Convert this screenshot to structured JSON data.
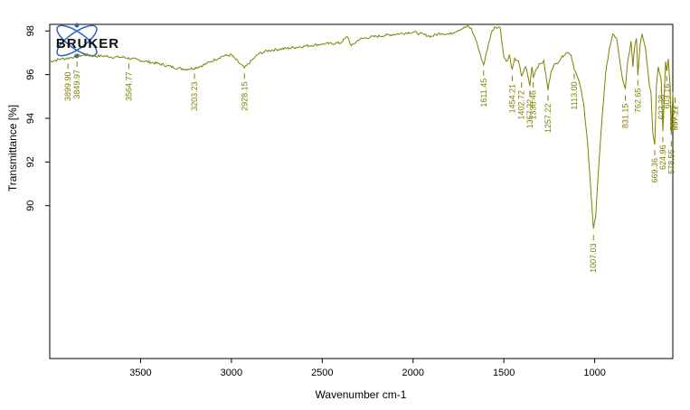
{
  "chart_data": {
    "type": "line",
    "title": "",
    "xlabel": "Wavenumber cm-1",
    "ylabel": "Transmittance [%]",
    "xlim": [
      4000,
      570
    ],
    "ylim": [
      83,
      98.3
    ],
    "x_reversed": true,
    "x_ticks": [
      3500,
      3000,
      2500,
      2000,
      1500,
      1000
    ],
    "y_ticks": [
      90,
      92,
      94,
      96,
      98
    ],
    "grid": false,
    "line_color": "#808000",
    "logo_text": "BRUKER",
    "logo_color": "#2a64c8",
    "series": [
      {
        "x": [
          4000,
          3950,
          3900,
          3850,
          3800,
          3750,
          3700,
          3650,
          3600,
          3564.77,
          3500,
          3400,
          3300,
          3250,
          3203.23,
          3150,
          3100,
          3050,
          3000,
          2960,
          2928.15,
          2900,
          2850,
          2800,
          2700,
          2600,
          2500,
          2400,
          2360,
          2340,
          2300,
          2250,
          2200,
          2100,
          2000,
          1950,
          1900,
          1850,
          1800,
          1750,
          1700,
          1680,
          1650,
          1630,
          1611.45,
          1590,
          1570,
          1550,
          1520,
          1500,
          1480,
          1470,
          1454.21,
          1440,
          1420,
          1402.72,
          1380,
          1357.22,
          1345,
          1338.46,
          1320,
          1300,
          1280,
          1257.22,
          1240,
          1220,
          1200,
          1180,
          1160,
          1140,
          1130,
          1113,
          1100,
          1080,
          1060,
          1040,
          1020,
          1007.03,
          995,
          980,
          960,
          940,
          920,
          900,
          880,
          860,
          845,
          831.15,
          820,
          800,
          790,
          780,
          770,
          762.65,
          750,
          740,
          720,
          700,
          690,
          680,
          669.36,
          660,
          650,
          640,
          633.38,
          624.96,
          610,
          603.16,
          595,
          585,
          578.55,
          570
        ],
        "y": [
          96.6,
          96.7,
          96.75,
          96.85,
          96.9,
          96.85,
          96.85,
          96.8,
          96.8,
          96.75,
          96.65,
          96.5,
          96.3,
          96.25,
          96.3,
          96.45,
          96.65,
          96.85,
          96.9,
          96.55,
          96.3,
          96.55,
          96.95,
          97.1,
          97.2,
          97.3,
          97.4,
          97.45,
          97.75,
          97.3,
          97.6,
          97.7,
          97.75,
          97.85,
          97.95,
          97.85,
          97.75,
          97.9,
          97.85,
          98.05,
          98.2,
          98.1,
          97.5,
          96.9,
          96.45,
          97.2,
          97.9,
          98.2,
          98.15,
          96.8,
          96.6,
          96.9,
          96.2,
          96.7,
          96.65,
          95.9,
          96.4,
          95.5,
          96.4,
          95.9,
          96.3,
          96.5,
          96.6,
          95.3,
          96.2,
          96.45,
          96.6,
          96.8,
          97.0,
          97.0,
          96.9,
          96.3,
          96.0,
          95.5,
          94.6,
          93.0,
          90.5,
          88.9,
          89.5,
          91.5,
          94.0,
          96.0,
          97.2,
          97.8,
          97.7,
          96.5,
          95.7,
          95.3,
          96.5,
          97.5,
          96.4,
          97.3,
          97.7,
          96.0,
          97.4,
          97.9,
          97.2,
          95.6,
          95.2,
          93.3,
          92.8,
          95.5,
          96.3,
          96.0,
          95.7,
          93.4,
          96.6,
          96.2,
          96.7,
          95.5,
          93.2,
          95.2
        ]
      }
    ],
    "peak_labels": [
      "3899.90",
      "3849.97",
      "3564.77",
      "3203.23",
      "2928.15",
      "1611.45",
      "1454.21",
      "1402.72",
      "1357.22",
      "1338.46",
      "1257.22",
      "1113.00",
      "1007.03",
      "831.15",
      "762.65",
      "669.36",
      "633.38",
      "624.96",
      "603.16",
      "578.55",
      "568.43",
      "557.21"
    ],
    "peak_x": [
      3899.9,
      3849.97,
      3564.77,
      3203.23,
      2928.15,
      1611.45,
      1454.21,
      1402.72,
      1357.22,
      1338.46,
      1257.22,
      1113.0,
      1007.03,
      831.15,
      762.65,
      669.36,
      633.38,
      624.96,
      603.16,
      578.55,
      568.43,
      557.21
    ]
  }
}
